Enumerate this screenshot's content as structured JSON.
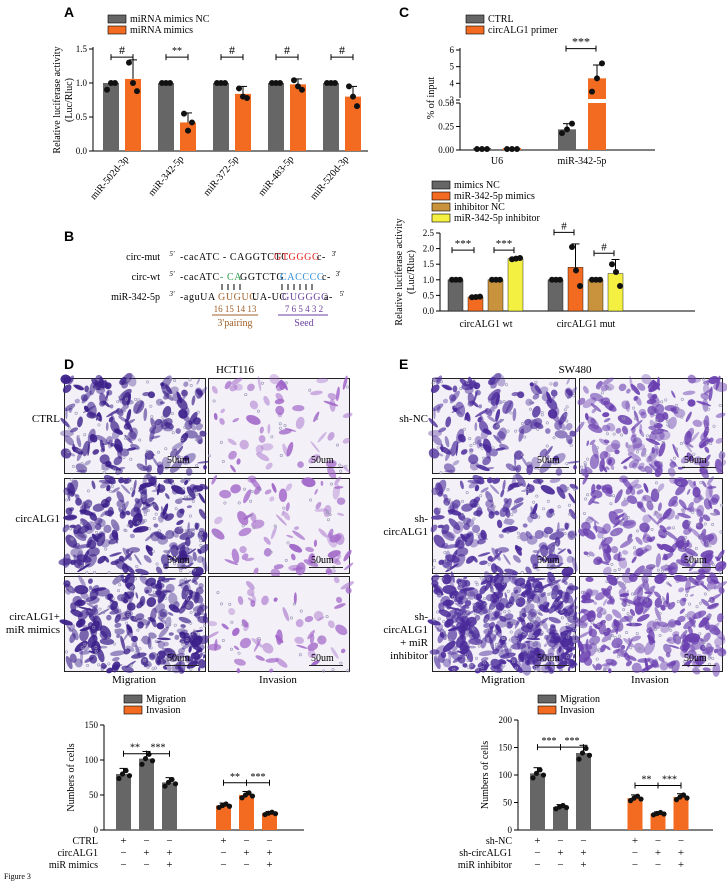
{
  "panel_labels": {
    "A": "A",
    "B": "B",
    "C": "C",
    "D": "D",
    "E": "E"
  },
  "colors": {
    "grey": "#666666",
    "orange": "#f26b21",
    "tan": "#c8933c",
    "yellow": "#f4f042",
    "red_seq": "#e02020",
    "green_seq": "#2a9a4a",
    "blue_seq": "#2f8fd8",
    "purple_seed": "#6a3fa0",
    "brown_pair": "#a0602a"
  },
  "chart_data": [
    {
      "id": "A",
      "type": "bar",
      "ylabel": "Relative  luciferase activity\n(Luc/Rluc)",
      "ylim": [
        0,
        1.5
      ],
      "yticks": [
        "0.0",
        "0.5",
        "1.0",
        "1.5"
      ],
      "categories": [
        "miR-502d-3p",
        "miR-342-5p",
        "miR-372-5p",
        "miR-483-5p",
        "miR-520d-3p"
      ],
      "series": [
        {
          "name": "miRNA mimics NC",
          "color": "#666666",
          "values": [
            1.0,
            1.0,
            1.0,
            1.0,
            1.0
          ],
          "points": [
            [
              0.9,
              1.0,
              1.0
            ],
            [
              1.0,
              1.0,
              1.0
            ],
            [
              1.0,
              1.0,
              1.0
            ],
            [
              1.0,
              1.0,
              1.0
            ],
            [
              1.0,
              1.0,
              1.0
            ]
          ]
        },
        {
          "name": "miRNA mimics",
          "color": "#f26b21",
          "values": [
            1.06,
            0.42,
            0.84,
            0.98,
            0.8
          ],
          "errors": [
            0.28,
            0.14,
            0.11,
            0.08,
            0.15
          ],
          "points": [
            [
              1.3,
              1.0,
              0.88
            ],
            [
              0.55,
              0.3,
              0.42
            ],
            [
              0.92,
              0.8,
              0.78
            ],
            [
              1.04,
              0.95,
              0.9
            ],
            [
              0.95,
              0.8,
              0.66
            ]
          ]
        }
      ],
      "annotations": [
        "#",
        "**",
        "#",
        "#",
        "#"
      ]
    },
    {
      "id": "C",
      "type": "bar",
      "ylabel": "% of input",
      "broken_axis": true,
      "yticks_lower": [
        "0.00",
        "0.25",
        "0.50"
      ],
      "yticks_upper": [
        "3",
        "4",
        "5",
        "6"
      ],
      "categories": [
        "U6",
        "miR-342-5p"
      ],
      "series": [
        {
          "name": "CTRL",
          "color": "#666666",
          "values": [
            0.01,
            0.22
          ],
          "points": [
            [
              0.01,
              0.01,
              0.01
            ],
            [
              0.18,
              0.22,
              0.28
            ]
          ]
        },
        {
          "name": "circALG1 primer",
          "color": "#f26b21",
          "values": [
            0.01,
            4.3
          ],
          "points": [
            [
              0.01,
              0.01,
              0.01
            ],
            [
              3.5,
              4.3,
              5.2
            ]
          ]
        }
      ],
      "annotations": [
        "***"
      ]
    },
    {
      "id": "B_right",
      "type": "bar",
      "ylabel": "Relative luciferase activity\n(Luc/Rluc)",
      "ylim": [
        0,
        2.5
      ],
      "yticks": [
        "0.0",
        "0.5",
        "1.0",
        "1.5",
        "2.0",
        "2.5"
      ],
      "categories": [
        "circALG1 wt",
        "circALG1 mut"
      ],
      "series": [
        {
          "name": "mimics NC",
          "color": "#666666",
          "values": [
            1.0,
            1.0
          ]
        },
        {
          "name": "miR-342-5p mimics",
          "color": "#f26b21",
          "values": [
            0.45,
            1.4
          ],
          "errors": [
            0.04,
            0.75
          ]
        },
        {
          "name": "inhibitor NC",
          "color": "#c8933c",
          "values": [
            1.0,
            1.0
          ]
        },
        {
          "name": "miR-342-5p inhibitor",
          "color": "#f4f042",
          "values": [
            1.68,
            1.2
          ],
          "errors": [
            0.03,
            0.45
          ]
        }
      ],
      "annotations": [
        "***",
        "***",
        "#",
        "#"
      ]
    },
    {
      "id": "D_bottom",
      "type": "bar",
      "ylabel": "Numbers of cells",
      "ylim": [
        0,
        150
      ],
      "yticks": [
        "0",
        "50",
        "100",
        "150"
      ],
      "groups": [
        "Migration",
        "Invasion"
      ],
      "series": [
        {
          "name": "Migration",
          "color": "#666666",
          "values": [
            80,
            102,
            68
          ]
        },
        {
          "name": "Invasion",
          "color": "#f26b21",
          "values": [
            35,
            50,
            24
          ]
        }
      ],
      "annotations": [
        "**",
        "***",
        "**",
        "***"
      ],
      "rows": [
        {
          "label": "CTRL",
          "signs": [
            "+",
            "−",
            "−",
            "+",
            "−",
            "−"
          ]
        },
        {
          "label": "circALG1",
          "signs": [
            "−",
            "+",
            "+",
            "−",
            "+",
            "+"
          ]
        },
        {
          "label": "miR mimics",
          "signs": [
            "−",
            "−",
            "+",
            "−",
            "−",
            "+"
          ]
        }
      ]
    },
    {
      "id": "E_bottom",
      "type": "bar",
      "ylabel": "Numbers of cells",
      "ylim": [
        0,
        200
      ],
      "yticks": [
        "0",
        "50",
        "100",
        "150",
        "200"
      ],
      "groups": [
        "Migration",
        "Invasion"
      ],
      "series": [
        {
          "name": "Migration",
          "color": "#666666",
          "values": [
            103,
            42,
            140
          ]
        },
        {
          "name": "Invasion",
          "color": "#f26b21",
          "values": [
            58,
            30,
            60
          ]
        }
      ],
      "annotations": [
        "***",
        "***",
        "**",
        "***"
      ],
      "rows": [
        {
          "label": "sh-NC",
          "signs": [
            "+",
            "−",
            "−",
            "+",
            "−",
            "−"
          ]
        },
        {
          "label": "sh-circALG1",
          "signs": [
            "−",
            "+",
            "+",
            "−",
            "+",
            "+"
          ]
        },
        {
          "label": "miR inhibitor",
          "signs": [
            "−",
            "−",
            "+",
            "−",
            "−",
            "+"
          ]
        }
      ]
    }
  ],
  "B": {
    "rows": [
      {
        "label": "circ-mut",
        "p5": "5'",
        "seq_a": "-cacATC - CAGGTCTC",
        "seq_b": "GTGGGG",
        "tail": "c-",
        "p3": "3'"
      },
      {
        "label": "circ-wt",
        "p5": "5'",
        "seq_a": "-cacATC",
        "mid1": " - CA",
        "mid2": "GGTCTG",
        "seq_b": "CACCCC",
        "tail": "c-",
        "p3": "3'"
      },
      {
        "label": "miR-342-5p",
        "p5": "3'",
        "seq_a": "-aguUA",
        "pair": "GUGUC",
        "mid": "UA-UC",
        "seed": "GUGGGG",
        "tail": "a-",
        "p3": "5'"
      }
    ],
    "pair_nums": "16 15 14 13",
    "seed_nums": "7 6 5 4 3 2",
    "pair_label": "3'pairing",
    "seed_label": "Seed"
  },
  "D": {
    "title": "HCT116",
    "rows": [
      "CTRL",
      "circALG1",
      "circALG1+\nmiR mimics"
    ],
    "cols": [
      "Migration",
      "Invasion"
    ],
    "scale": "50um"
  },
  "E": {
    "title": "SW480",
    "rows": [
      "sh-NC",
      "sh-circALG1",
      "sh-circALG1\n+ miR inhibitor"
    ],
    "cols": [
      "Migration",
      "Invasion"
    ],
    "scale": "50um"
  },
  "caption": "Figure 3"
}
